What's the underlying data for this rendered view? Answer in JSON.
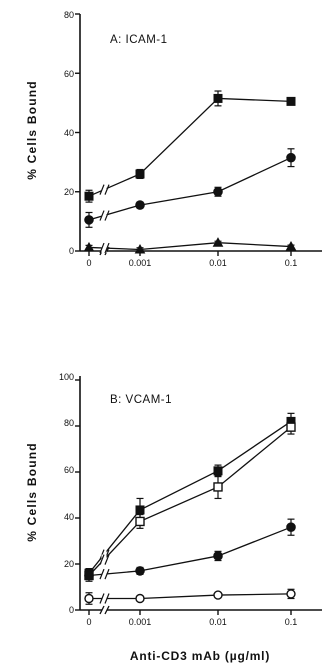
{
  "chart_data": [
    {
      "type": "line",
      "title": "A: ICAM-1",
      "ylabel": "% Cells Bound",
      "xlabel": "",
      "ylim": [
        0,
        80
      ],
      "yticks": [
        "0",
        "20",
        "40",
        "60",
        "80"
      ],
      "categories": [
        "0",
        "0.001",
        "0.01",
        "0.1"
      ],
      "xticks": [
        "0",
        "0.001",
        "0.01",
        "0.1"
      ],
      "axis_break": true,
      "series": [
        {
          "marker": "filled-square",
          "values": [
            18.5,
            26,
            51.5,
            50.5
          ],
          "errors": [
            2,
            1.5,
            2.5,
            0.5
          ]
        },
        {
          "marker": "filled-circle",
          "values": [
            10.5,
            15.5,
            20,
            31.5
          ],
          "errors": [
            2.5,
            1,
            1.5,
            3
          ]
        },
        {
          "marker": "filled-triangle",
          "values": [
            1.2,
            0.5,
            2.8,
            1.5
          ],
          "errors": [
            0.7,
            0.6,
            0.5,
            0.5
          ]
        }
      ]
    },
    {
      "type": "line",
      "title": "B: VCAM-1",
      "ylabel": "% Cells Bound",
      "xlabel": "Anti-CD3 mAb (µg/ml)",
      "ylim": [
        0,
        100
      ],
      "yticks": [
        "0",
        "20",
        "40",
        "60",
        "80",
        "100"
      ],
      "categories": [
        "0",
        "0.001",
        "0.01",
        "0.1"
      ],
      "xticks": [
        "0",
        "0.001",
        "0.01",
        "0.1"
      ],
      "axis_break": true,
      "series": [
        {
          "marker": "filled-square",
          "values": [
            16,
            43.5,
            60.5,
            82
          ],
          "errors": [
            2,
            5,
            2.5,
            3.5
          ]
        },
        {
          "marker": "open-square",
          "values": [
            15,
            38.5,
            53.5,
            79.5
          ],
          "errors": [
            2.5,
            3,
            5,
            3
          ]
        },
        {
          "marker": "filled-circle",
          "values": [
            15,
            17,
            23.5,
            36
          ],
          "errors": [
            1,
            1.5,
            2,
            3.5
          ]
        },
        {
          "marker": "open-circle",
          "values": [
            5,
            5,
            6.5,
            7
          ],
          "errors": [
            2.5,
            0.5,
            1,
            2
          ]
        }
      ]
    }
  ]
}
